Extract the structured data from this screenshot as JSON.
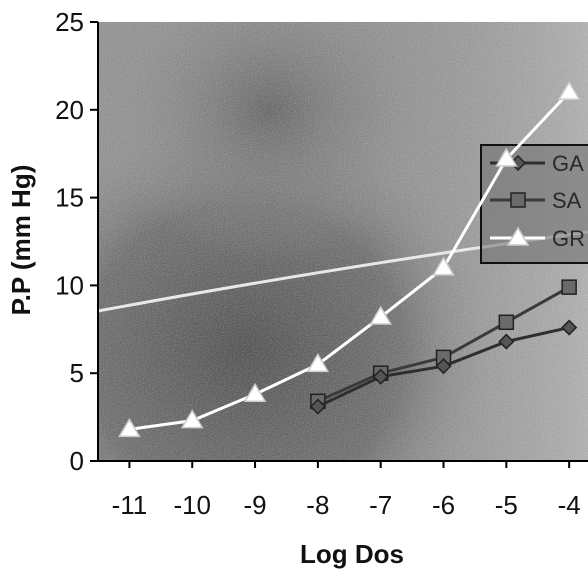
{
  "chart_data": {
    "type": "line",
    "title": "",
    "xlabel": "Log Dos",
    "ylabel": "P.P (mm Hg)",
    "x": [
      -11,
      -10,
      -9,
      -8,
      -7,
      -6,
      -5,
      -4
    ],
    "x_ticks": [
      "-11",
      "-10",
      "-9",
      "-8",
      "-7",
      "-6",
      "-5",
      "-4"
    ],
    "y_ticks": [
      "0",
      "5",
      "10",
      "15",
      "20",
      "25"
    ],
    "xlim": [
      -11.5,
      -3.7
    ],
    "ylim": [
      0,
      25
    ],
    "grid": false,
    "legend_position": "right",
    "legend_entries": [
      "GA",
      "SA",
      "GR"
    ],
    "series": [
      {
        "name": "GR",
        "marker": "triangle",
        "color": "#ffffff",
        "values": [
          1.8,
          2.3,
          3.8,
          5.5,
          8.2,
          11.0,
          17.2,
          21.0
        ]
      },
      {
        "name": "SA",
        "marker": "square",
        "color": "#555555",
        "values": [
          null,
          null,
          null,
          3.4,
          5.0,
          5.9,
          7.9,
          9.9
        ]
      },
      {
        "name": "GA",
        "marker": "diamond",
        "color": "#444444",
        "values": [
          null,
          null,
          null,
          3.1,
          4.8,
          5.4,
          6.8,
          7.6
        ]
      }
    ],
    "colors": {
      "plot_background": "#8a8a8a",
      "plot_dark_area": "#4a4a4a",
      "axis": "#000000"
    }
  }
}
